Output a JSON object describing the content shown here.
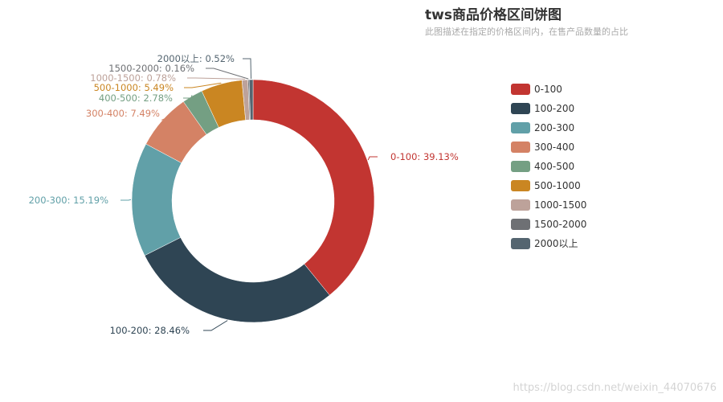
{
  "chart_data": {
    "type": "pie",
    "title": "tws商品价格区间饼图",
    "subtitle": "此图描述在指定的价格区间内，在售产品数量的占比",
    "donut": true,
    "legend_position": "right",
    "slices": [
      {
        "name": "0-100",
        "percent": 39.13,
        "label": "0-100: 39.13%",
        "color": "#c23531"
      },
      {
        "name": "100-200",
        "percent": 28.46,
        "label": "100-200: 28.46%",
        "color": "#2f4554"
      },
      {
        "name": "200-300",
        "percent": 15.19,
        "label": "200-300: 15.19%",
        "color": "#61a0a8"
      },
      {
        "name": "300-400",
        "percent": 7.49,
        "label": "300-400: 7.49%",
        "color": "#d48265"
      },
      {
        "name": "400-500",
        "percent": 2.78,
        "label": "400-500: 2.78%",
        "color": "#749f83"
      },
      {
        "name": "500-1000",
        "percent": 5.49,
        "label": "500-1000: 5.49%",
        "color": "#ca8622"
      },
      {
        "name": "1000-1500",
        "percent": 0.78,
        "label": "1000-1500: 0.78%",
        "color": "#bda29a"
      },
      {
        "name": "1500-2000",
        "percent": 0.16,
        "label": "1500-2000: 0.16%",
        "color": "#6e7074"
      },
      {
        "name": "2000以上",
        "percent": 0.52,
        "label": "2000以上: 0.52%",
        "color": "#546570"
      }
    ]
  },
  "watermark": "https://blog.csdn.net/weixin_44070676"
}
